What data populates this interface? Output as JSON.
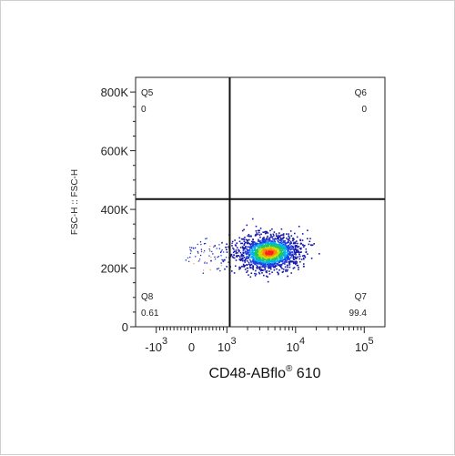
{
  "chart_data": {
    "type": "scatter",
    "xlabel": "CD48-ABflo",
    "xlabel_sup": "®",
    "xlabel_suffix": " 610",
    "ylabel": "FSC-H :: FSC-H",
    "x_scale": "biexponential",
    "x_ticks": [
      {
        "value": -1000,
        "base": "-10",
        "exp": "3"
      },
      {
        "value": 0,
        "base": "0",
        "exp": ""
      },
      {
        "value": 1000,
        "base": "10",
        "exp": "3"
      },
      {
        "value": 10000,
        "base": "10",
        "exp": "4"
      },
      {
        "value": 100000,
        "base": "10",
        "exp": "5"
      }
    ],
    "y_ticks": [
      {
        "value": 0,
        "label": "0"
      },
      {
        "value": 200000,
        "label": "200K"
      },
      {
        "value": 400000,
        "label": "400K"
      },
      {
        "value": 600000,
        "label": "600K"
      },
      {
        "value": 800000,
        "label": "800K"
      }
    ],
    "ylim": [
      0,
      850000
    ],
    "gate": {
      "x": 1100,
      "y": 435000
    },
    "quadrants": [
      {
        "name": "Q5",
        "value": "0",
        "position": "top-left"
      },
      {
        "name": "Q6",
        "value": "0",
        "position": "top-right"
      },
      {
        "name": "Q7",
        "value": "99.4",
        "position": "bottom-right"
      },
      {
        "name": "Q8",
        "value": "0.61",
        "position": "bottom-left"
      }
    ],
    "population": {
      "center_x": 4000,
      "center_y": 255000,
      "percent_positive": 99.4
    },
    "colors": [
      "#1a1aa8",
      "#1f3fe0",
      "#00b2ee",
      "#22c55e",
      "#c8e000",
      "#ff8c00",
      "#ff2020"
    ]
  }
}
